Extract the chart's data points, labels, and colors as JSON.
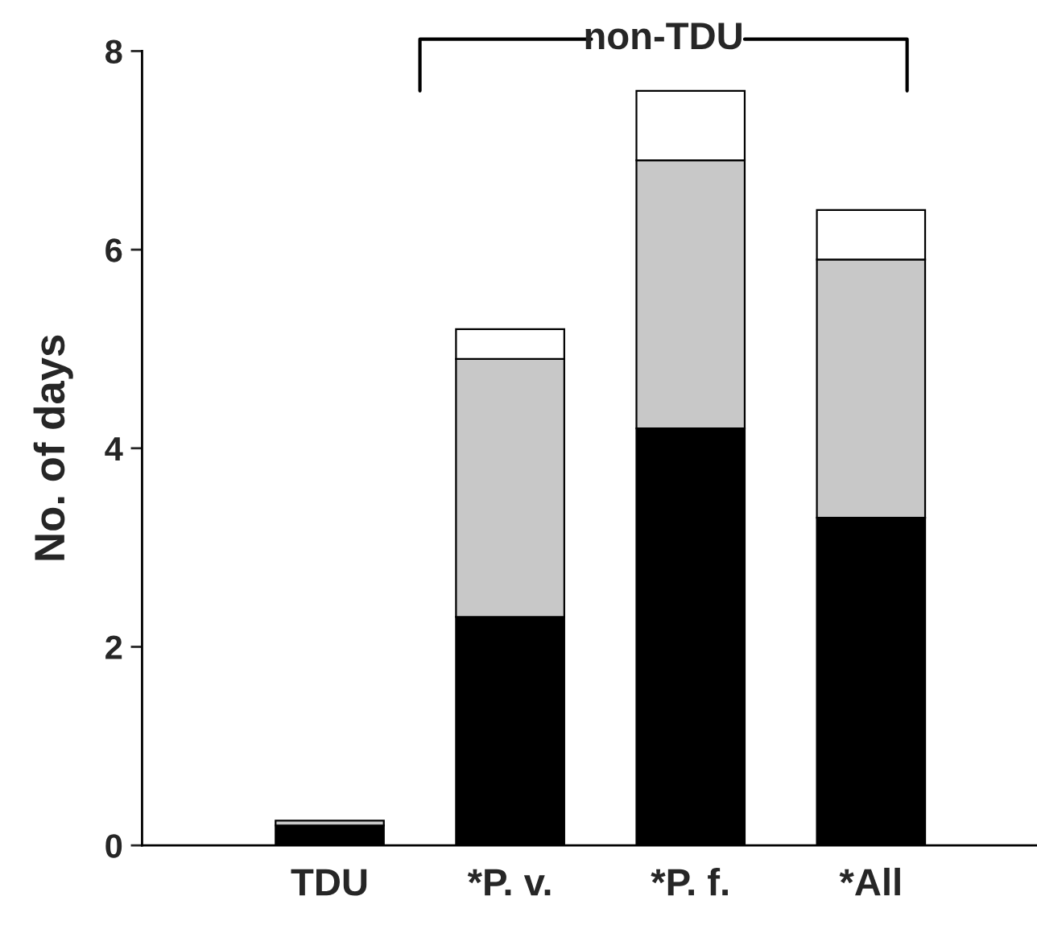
{
  "chart_data": {
    "type": "bar",
    "stacked": true,
    "ylabel": "No. of days",
    "categories": [
      "TDU",
      "*P. v.",
      "*P. f.",
      "*All"
    ],
    "series": [
      {
        "color": "#000000",
        "values": [
          0.2,
          2.3,
          4.2,
          3.3
        ]
      },
      {
        "color": "#c8c8c8",
        "values": [
          0.05,
          2.6,
          2.7,
          2.6
        ]
      },
      {
        "color": "#ffffff",
        "values": [
          0,
          0.3,
          0.7,
          0.5
        ]
      }
    ],
    "ylim": [
      0,
      8
    ],
    "yticks": [
      0,
      2,
      4,
      6,
      8
    ],
    "grid": false,
    "legend": false,
    "annotations": [
      "non-TDU"
    ]
  }
}
